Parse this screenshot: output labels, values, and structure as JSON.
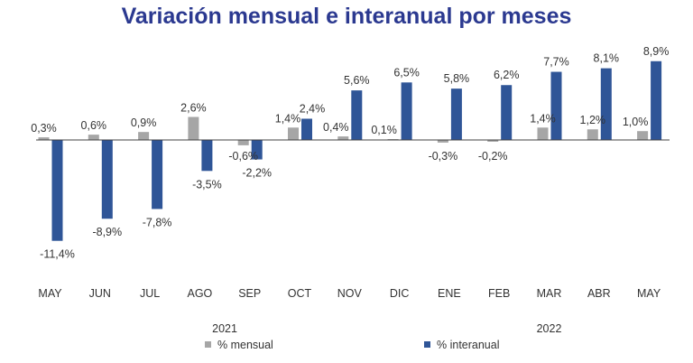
{
  "chart_data": {
    "type": "bar",
    "title": "Variación mensual e interanual por meses",
    "categories": [
      "MAY",
      "JUN",
      "JUL",
      "AGO",
      "SEP",
      "OCT",
      "NOV",
      "DIC",
      "ENE",
      "FEB",
      "MAR",
      "ABR",
      "MAY"
    ],
    "year_groups": [
      {
        "label": "2021",
        "from": 0,
        "to": 7
      },
      {
        "label": "2022",
        "from": 8,
        "to": 12
      }
    ],
    "series": [
      {
        "name": "% mensual",
        "color": "#a6a6a6",
        "values": [
          0.3,
          0.6,
          0.9,
          2.6,
          -0.6,
          1.4,
          0.4,
          0.1,
          -0.3,
          -0.2,
          1.4,
          1.2,
          1.0
        ],
        "labels": [
          "0,3%",
          "0,6%",
          "0,9%",
          "2,6%",
          "-0,6%",
          "1,4%",
          "0,4%",
          "0,1%",
          "-0,3%",
          "-0,2%",
          "1,4%",
          "1,2%",
          "1,0%"
        ]
      },
      {
        "name": "% interanual",
        "color": "#2f5597",
        "values": [
          -11.4,
          -8.9,
          -7.8,
          -3.5,
          -2.2,
          2.4,
          5.6,
          6.5,
          5.8,
          6.2,
          7.7,
          8.1,
          8.9
        ],
        "labels": [
          "-11,4%",
          "-8,9%",
          "-7,8%",
          "-3,5%",
          "-2,2%",
          "2,4%",
          "5,6%",
          "6,5%",
          "5,8%",
          "6,2%",
          "7,7%",
          "8,1%",
          "8,9%"
        ]
      }
    ],
    "legend_position": "bottom",
    "grid": false
  }
}
